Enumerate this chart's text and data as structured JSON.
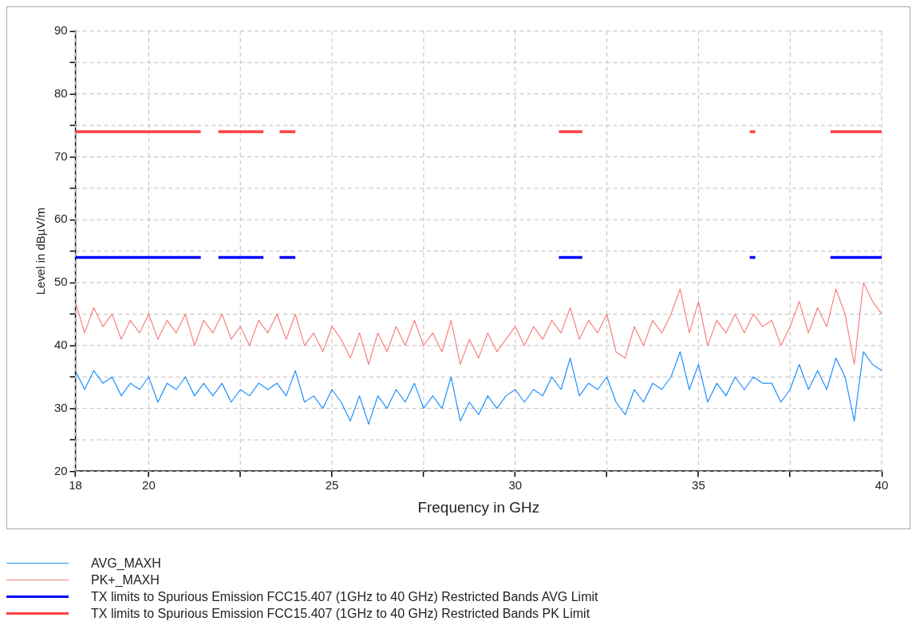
{
  "chart_data": {
    "type": "line",
    "xlabel": "Frequency in GHz",
    "ylabel": "Level in dBµV/m",
    "xlim": [
      18,
      40
    ],
    "ylim": [
      20,
      90
    ],
    "xticks": [
      18,
      20,
      {
        "value": 22.5,
        "label": null
      },
      25,
      {
        "value": 27.5,
        "label": null
      },
      30,
      {
        "value": 32.5,
        "label": null
      },
      35,
      {
        "value": 37.5,
        "label": null
      },
      40
    ],
    "yticks": [
      20,
      {
        "value": 25,
        "label": null
      },
      30,
      {
        "value": 35,
        "label": null
      },
      40,
      {
        "value": 45,
        "label": null
      },
      50,
      {
        "value": 55,
        "label": null
      },
      60,
      {
        "value": 65,
        "label": null
      },
      70,
      {
        "value": 75,
        "label": null
      },
      80,
      {
        "value": 85,
        "label": null
      },
      90
    ],
    "grid": true,
    "legend": "bottom",
    "marker": "none",
    "line_style": "solid",
    "series": [
      {
        "name": "AVG_MAXH",
        "color": "#1e90ff",
        "x": [
          18,
          18.25,
          18.5,
          18.75,
          19,
          19.25,
          19.5,
          19.75,
          20,
          20.25,
          20.5,
          20.75,
          21,
          21.25,
          21.5,
          21.75,
          22,
          22.25,
          22.5,
          22.75,
          23,
          23.25,
          23.5,
          23.75,
          24,
          24.25,
          24.5,
          24.75,
          25,
          25.25,
          25.5,
          25.75,
          26,
          26.25,
          26.5,
          26.75,
          27,
          27.25,
          27.5,
          27.75,
          28,
          28.25,
          28.5,
          28.75,
          29,
          29.25,
          29.5,
          29.75,
          30,
          30.25,
          30.5,
          30.75,
          31,
          31.25,
          31.5,
          31.75,
          32,
          32.25,
          32.5,
          32.75,
          33,
          33.25,
          33.5,
          33.75,
          34,
          34.25,
          34.5,
          34.75,
          35,
          35.25,
          35.5,
          35.75,
          36,
          36.25,
          36.5,
          36.75,
          37,
          37.25,
          37.5,
          37.75,
          38,
          38.25,
          38.5,
          38.75,
          39,
          39.25,
          39.5,
          39.75,
          40
        ],
        "values": [
          36,
          33,
          36,
          34,
          35,
          32,
          34,
          33,
          35,
          31,
          34,
          33,
          35,
          32,
          34,
          32,
          34,
          31,
          33,
          32,
          34,
          33,
          34,
          32,
          36,
          31,
          32,
          30,
          33,
          31,
          28,
          32,
          27.5,
          32,
          30,
          33,
          31,
          34,
          30,
          32,
          30,
          35,
          28,
          31,
          29,
          32,
          30,
          32,
          33,
          31,
          33,
          32,
          35,
          33,
          38,
          32,
          34,
          33,
          35,
          31,
          29,
          33,
          31,
          34,
          33,
          35,
          39,
          33,
          37,
          31,
          34,
          32,
          35,
          33,
          35,
          34,
          34,
          31,
          33,
          37,
          33,
          36,
          33,
          38,
          35,
          28,
          39,
          37,
          36
        ]
      },
      {
        "name": "PK+_MAXH",
        "color": "#f88080",
        "x": [
          18,
          18.25,
          18.5,
          18.75,
          19,
          19.25,
          19.5,
          19.75,
          20,
          20.25,
          20.5,
          20.75,
          21,
          21.25,
          21.5,
          21.75,
          22,
          22.25,
          22.5,
          22.75,
          23,
          23.25,
          23.5,
          23.75,
          24,
          24.25,
          24.5,
          24.75,
          25,
          25.25,
          25.5,
          25.75,
          26,
          26.25,
          26.5,
          26.75,
          27,
          27.25,
          27.5,
          27.75,
          28,
          28.25,
          28.5,
          28.75,
          29,
          29.25,
          29.5,
          29.75,
          30,
          30.25,
          30.5,
          30.75,
          31,
          31.25,
          31.5,
          31.75,
          32,
          32.25,
          32.5,
          32.75,
          33,
          33.25,
          33.5,
          33.75,
          34,
          34.25,
          34.5,
          34.75,
          35,
          35.25,
          35.5,
          35.75,
          36,
          36.25,
          36.5,
          36.75,
          37,
          37.25,
          37.5,
          37.75,
          38,
          38.25,
          38.5,
          38.75,
          39,
          39.25,
          39.5,
          39.75,
          40
        ],
        "values": [
          47,
          42,
          46,
          43,
          45,
          41,
          44,
          42,
          45,
          41,
          44,
          42,
          45,
          40,
          44,
          42,
          45,
          41,
          43,
          40,
          44,
          42,
          45,
          41,
          45,
          40,
          42,
          39,
          43,
          41,
          38,
          42,
          37,
          42,
          39,
          43,
          40,
          44,
          40,
          42,
          39,
          44,
          37,
          41,
          38,
          42,
          39,
          41,
          43,
          40,
          43,
          41,
          44,
          42,
          46,
          41,
          44,
          42,
          45,
          39,
          38,
          43,
          40,
          44,
          42,
          45,
          49,
          42,
          47,
          40,
          44,
          42,
          45,
          42,
          45,
          43,
          44,
          40,
          43,
          47,
          42,
          46,
          43,
          49,
          45,
          37,
          50,
          47,
          45
        ]
      },
      {
        "name": "TX limits to Spurious Emission FCC15.407 (1GHz to 40 GHz) Restricted Bands AVG Limit",
        "color": "#0000ff",
        "x": [
          18,
          21.42,
          21.66,
          21.9,
          23.13,
          23.35,
          23.57,
          24.0,
          27.6,
          31.19,
          31.83,
          34.1,
          36.4,
          36.55,
          37.6,
          38.6,
          40
        ],
        "values": [
          54,
          54,
          null,
          54,
          54,
          null,
          54,
          54,
          null,
          54,
          54,
          null,
          54,
          54,
          null,
          54,
          54
        ]
      },
      {
        "name": "TX limits to Spurious Emission FCC15.407 (1GHz to 40 GHz) Restricted Bands PK Limit",
        "color": "#ff4040",
        "x": [
          18,
          21.42,
          21.66,
          21.9,
          23.13,
          23.35,
          23.57,
          24.0,
          27.6,
          31.19,
          31.83,
          34.1,
          36.4,
          36.55,
          37.6,
          38.6,
          40
        ],
        "values": [
          74,
          74,
          null,
          74,
          74,
          null,
          74,
          74,
          null,
          74,
          74,
          null,
          74,
          74,
          null,
          74,
          74
        ]
      }
    ]
  }
}
